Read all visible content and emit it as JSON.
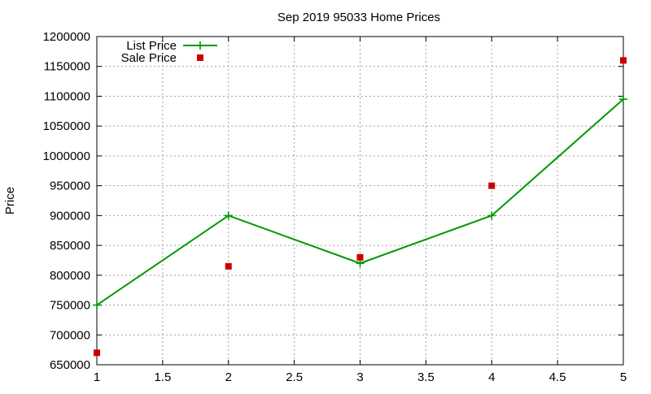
{
  "chart_data": {
    "type": "line",
    "title": "Sep 2019 95033 Home Prices",
    "xlabel": "",
    "ylabel": "Price",
    "xlim": [
      1,
      5
    ],
    "ylim": [
      650000,
      1200000
    ],
    "x_ticks": [
      "1",
      "1.5",
      "2",
      "2.5",
      "3",
      "3.5",
      "4",
      "4.5",
      "5"
    ],
    "y_ticks": [
      "650000",
      "700000",
      "750000",
      "800000",
      "850000",
      "900000",
      "950000",
      "1000000",
      "1050000",
      "1100000",
      "1150000",
      "1200000"
    ],
    "grid": true,
    "legend_position": "top-left",
    "series": [
      {
        "name": "List Price",
        "style": "line-with-plus-markers",
        "color": "#009900",
        "x": [
          1,
          2,
          3,
          4,
          5
        ],
        "y": [
          750000,
          900000,
          820000,
          900000,
          1095000
        ]
      },
      {
        "name": "Sale Price",
        "style": "square-markers",
        "color": "#cc0000",
        "x": [
          1,
          2,
          3,
          4,
          5
        ],
        "y": [
          670000,
          815000,
          830000,
          950000,
          1160000
        ]
      }
    ]
  }
}
